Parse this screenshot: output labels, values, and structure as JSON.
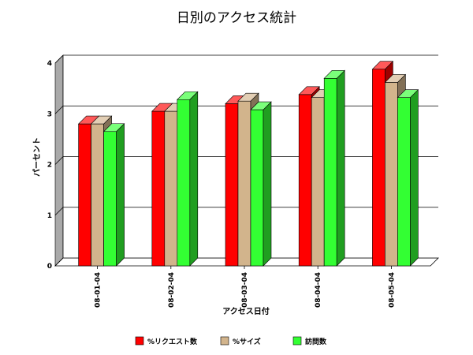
{
  "chart_data": {
    "type": "bar",
    "title": "日別のアクセス統計",
    "xlabel": "アクセス日付",
    "ylabel": "パーセント",
    "categories": [
      "08-01-04",
      "08-02-04",
      "08-03-04",
      "08-04-04",
      "08-05-04"
    ],
    "ylim": [
      0,
      4
    ],
    "yticks": [
      "0",
      "1",
      "2",
      "3",
      "4"
    ],
    "grid": true,
    "legend_position": "bottom",
    "series": [
      {
        "name": "%リクエスト数",
        "color": "#ff0000",
        "values": [
          2.8,
          3.05,
          3.2,
          3.38,
          3.88
        ]
      },
      {
        "name": "%サイズ",
        "color": "#d2b48c",
        "values": [
          2.8,
          3.05,
          3.25,
          3.32,
          3.62
        ]
      },
      {
        "name": "訪問数",
        "color": "#33ff33",
        "values": [
          2.65,
          3.28,
          3.08,
          3.7,
          3.32
        ]
      }
    ]
  }
}
